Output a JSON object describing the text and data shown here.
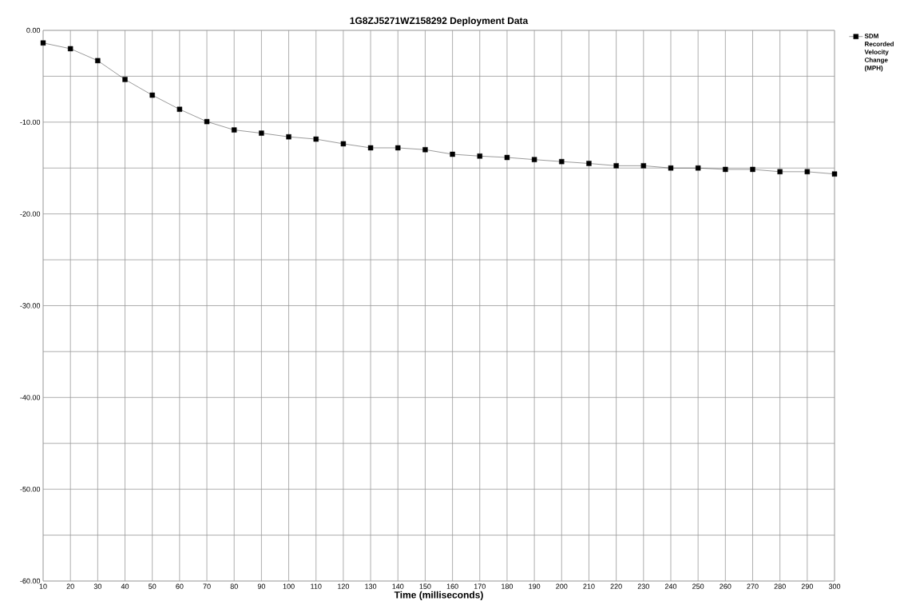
{
  "chart_data": {
    "type": "line",
    "title": "1G8ZJ5271WZ158292  Deployment Data",
    "xlabel": "Time (milliseconds)",
    "categories": [
      "10",
      "20",
      "30",
      "40",
      "50",
      "60",
      "70",
      "80",
      "90",
      "100",
      "110",
      "120",
      "130",
      "140",
      "150",
      "160",
      "170",
      "180",
      "190",
      "200",
      "210",
      "220",
      "230",
      "240",
      "250",
      "260",
      "270",
      "280",
      "290",
      "300"
    ],
    "series": [
      {
        "name": "SDM Recorded Velocity Change (MPH)",
        "color": "#000000",
        "values": [
          -1.37,
          -2.0,
          -3.3,
          -5.35,
          -7.06,
          -8.6,
          -9.94,
          -10.85,
          -11.2,
          -11.6,
          -11.85,
          -12.36,
          -12.8,
          -12.8,
          -13.0,
          -13.5,
          -13.7,
          -13.85,
          -14.08,
          -14.3,
          -14.5,
          -14.75,
          -14.75,
          -15.0,
          -15.0,
          -15.15,
          -15.15,
          -15.4,
          -15.4,
          -15.65
        ]
      }
    ],
    "ylim": [
      -60,
      0
    ],
    "yticks": [
      {
        "value": -60,
        "label": "-60.00"
      },
      {
        "value": -55,
        "label": null
      },
      {
        "value": -50,
        "label": "-50.00"
      },
      {
        "value": -45,
        "label": null
      },
      {
        "value": -40,
        "label": "-40.00"
      },
      {
        "value": -35,
        "label": null
      },
      {
        "value": -30,
        "label": "-30.00"
      },
      {
        "value": -25,
        "label": null
      },
      {
        "value": -20,
        "label": "-20.00"
      },
      {
        "value": -15,
        "label": null
      },
      {
        "value": -10,
        "label": "-10.00"
      },
      {
        "value": -5,
        "label": null
      },
      {
        "value": 0,
        "label": "0.00"
      }
    ],
    "grid": true,
    "legend": "right",
    "marker": "square",
    "line_style": "solid"
  }
}
